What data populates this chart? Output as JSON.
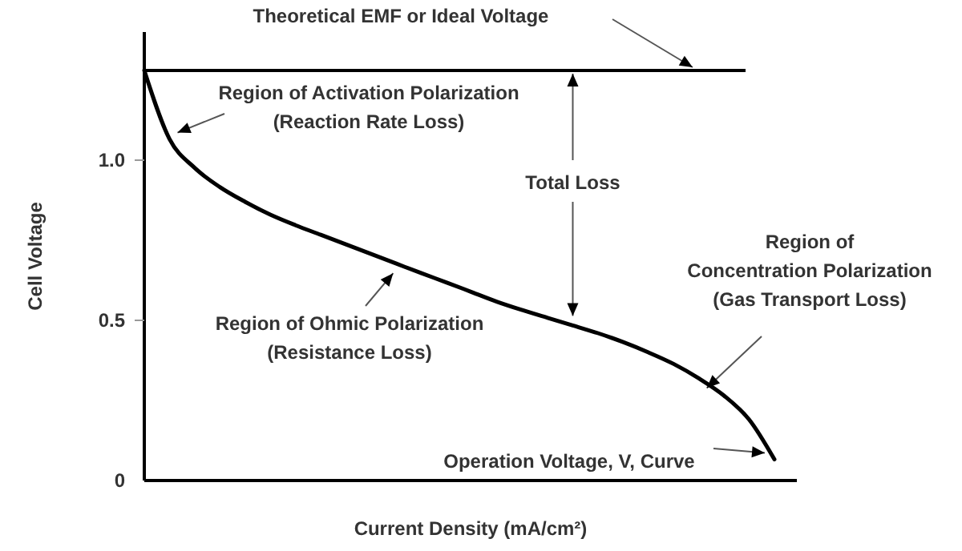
{
  "chart_data": {
    "type": "line",
    "xlabel": "Current Density (mA/cm²)",
    "ylabel": "Cell Voltage",
    "categories": [
      null,
      null,
      null,
      null,
      null,
      null,
      null,
      null,
      null,
      null,
      null,
      null,
      null,
      null,
      null,
      null,
      null,
      null,
      null,
      null,
      null,
      null,
      null,
      null,
      null,
      null
    ],
    "values": [
      1.28,
      1.066,
      0.976,
      0.916,
      0.87,
      0.83,
      0.797,
      0.767,
      0.737,
      0.707,
      0.677,
      0.647,
      0.618,
      0.588,
      0.558,
      0.532,
      0.508,
      0.484,
      0.46,
      0.432,
      0.4,
      0.364,
      0.319,
      0.265,
      0.19,
      0.066
    ],
    "color": "#000000",
    "ylim": [
      0,
      1.4
    ],
    "yticks": [
      0,
      0.5,
      {
        "value": 1,
        "label": "1.0"
      }
    ],
    "ref_lines": [
      {
        "axis": "y",
        "value": 1.28,
        "label": "Theoretical EMF or Ideal Voltage",
        "color": "#000000"
      }
    ],
    "annotations": [
      "Region of Activation Polarization\n(Reaction Rate Loss)",
      "Total Loss",
      "Region of Ohmic Polarization\n(Resistance Loss)",
      "Region of\nConcentration Polarization\n(Gas Transport Loss)",
      "Operation Voltage, V, Curve"
    ]
  }
}
